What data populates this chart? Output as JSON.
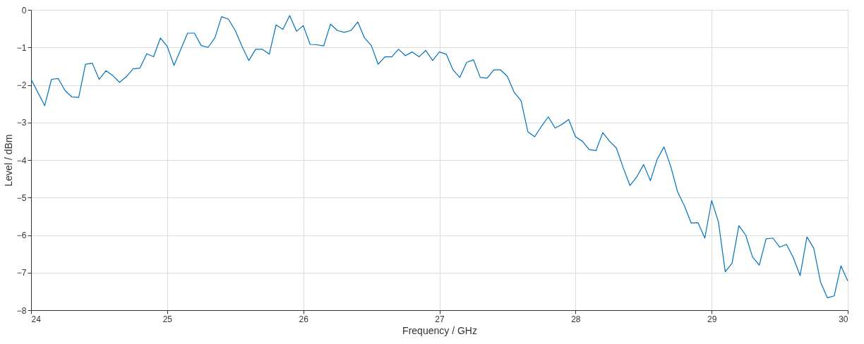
{
  "chart_data": {
    "type": "line",
    "xlabel": "Frequency / GHz",
    "ylabel": "Level / dBm",
    "xlim": [
      24,
      30
    ],
    "ylim": [
      -8,
      0
    ],
    "xticks": [
      24,
      25,
      26,
      27,
      28,
      29,
      30
    ],
    "yticks": [
      -8,
      -7,
      -6,
      -5,
      -4,
      -3,
      -2,
      -1,
      0
    ],
    "grid": true,
    "marker": "none",
    "line_style": "solid",
    "x": [
      24.0,
      24.05,
      24.1,
      24.15,
      24.2,
      24.25,
      24.3,
      24.35,
      24.4,
      24.45,
      24.5,
      24.55,
      24.6,
      24.65,
      24.7,
      24.75,
      24.8,
      24.85,
      24.9,
      24.95,
      25.0,
      25.05,
      25.1,
      25.15,
      25.2,
      25.25,
      25.3,
      25.35,
      25.4,
      25.45,
      25.5,
      25.55,
      25.6,
      25.65,
      25.7,
      25.75,
      25.8,
      25.85,
      25.9,
      25.95,
      26.0,
      26.05,
      26.1,
      26.15,
      26.2,
      26.25,
      26.3,
      26.35,
      26.4,
      26.45,
      26.5,
      26.55,
      26.6,
      26.65,
      26.7,
      26.75,
      26.8,
      26.85,
      26.9,
      26.95,
      27.0,
      27.05,
      27.1,
      27.15,
      27.2,
      27.25,
      27.3,
      27.35,
      27.4,
      27.45,
      27.5,
      27.55,
      27.6,
      27.65,
      27.7,
      27.75,
      27.8,
      27.85,
      27.9,
      27.95,
      28.0,
      28.05,
      28.1,
      28.15,
      28.2,
      28.25,
      28.3,
      28.35,
      28.4,
      28.45,
      28.5,
      28.55,
      28.6,
      28.65,
      28.7,
      28.75,
      28.8,
      28.85,
      28.9,
      28.95,
      29.0,
      29.05,
      29.1,
      29.15,
      29.2,
      29.25,
      29.3,
      29.35,
      29.4,
      29.45,
      29.5,
      29.55,
      29.6,
      29.65,
      29.7,
      29.75,
      29.8,
      29.85,
      29.9,
      29.95,
      30.0
    ],
    "series": [
      {
        "color": "#0072bd",
        "values": [
          -1.85,
          -2.2,
          -2.55,
          -1.85,
          -1.83,
          -2.15,
          -2.32,
          -2.33,
          -1.45,
          -1.42,
          -1.85,
          -1.62,
          -1.75,
          -1.93,
          -1.78,
          -1.57,
          -1.55,
          -1.17,
          -1.25,
          -0.75,
          -0.97,
          -1.48,
          -1.05,
          -0.62,
          -0.62,
          -0.95,
          -1.0,
          -0.75,
          -0.18,
          -0.25,
          -0.55,
          -0.97,
          -1.35,
          -1.05,
          -1.05,
          -1.18,
          -0.4,
          -0.52,
          -0.15,
          -0.57,
          -0.42,
          -0.92,
          -0.93,
          -0.96,
          -0.38,
          -0.55,
          -0.6,
          -0.55,
          -0.32,
          -0.75,
          -0.95,
          -1.45,
          -1.25,
          -1.25,
          -1.05,
          -1.22,
          -1.12,
          -1.25,
          -1.08,
          -1.35,
          -1.12,
          -1.18,
          -1.6,
          -1.8,
          -1.4,
          -1.33,
          -1.8,
          -1.82,
          -1.6,
          -1.6,
          -1.78,
          -2.2,
          -2.42,
          -3.25,
          -3.38,
          -3.1,
          -2.85,
          -3.15,
          -3.05,
          -2.92,
          -3.38,
          -3.5,
          -3.72,
          -3.75,
          -3.27,
          -3.5,
          -3.68,
          -4.2,
          -4.68,
          -4.45,
          -4.12,
          -4.55,
          -3.98,
          -3.65,
          -4.18,
          -4.85,
          -5.22,
          -5.68,
          -5.67,
          -6.08,
          -5.08,
          -5.65,
          -6.98,
          -6.75,
          -5.75,
          -6.0,
          -6.58,
          -6.8,
          -6.1,
          -6.08,
          -6.32,
          -6.25,
          -6.6,
          -7.08,
          -6.05,
          -6.35,
          -7.25,
          -7.67,
          -7.62,
          -6.82,
          -7.22
        ]
      }
    ]
  }
}
